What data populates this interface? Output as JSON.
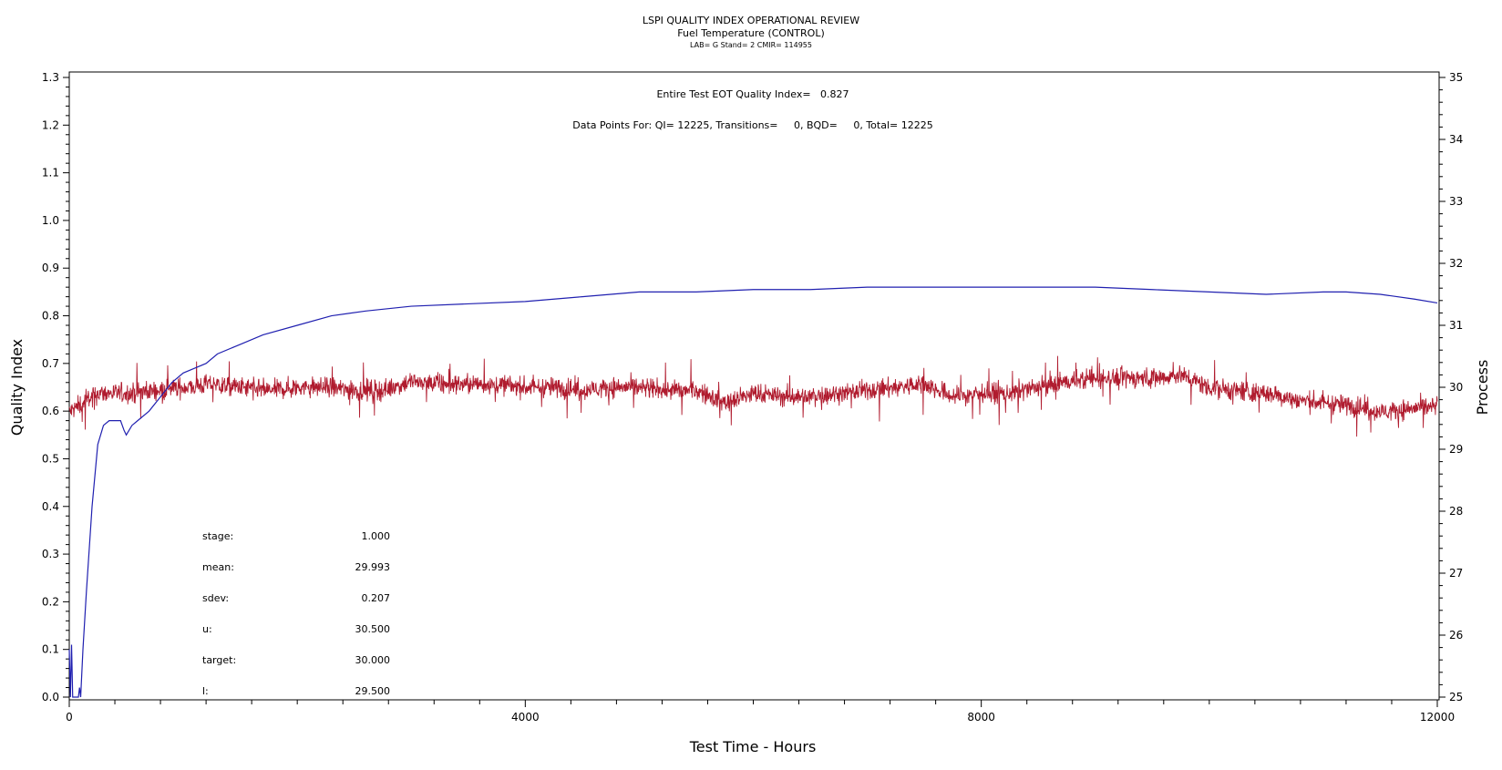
{
  "chart_data": {
    "type": "line",
    "title": "LSPI QUALITY INDEX OPERATIONAL REVIEW",
    "subtitle": "Fuel Temperature (CONTROL)",
    "subtitle2": "LAB= G Stand= 2 CMIR= 114955",
    "xlabel": "Test Time - Hours",
    "ylabel_left": "Quality Index",
    "ylabel_right": "Process",
    "xlim": [
      0,
      12000
    ],
    "ylim_left": [
      0.0,
      1.3
    ],
    "ylim_right": [
      25,
      35
    ],
    "x_ticks": [
      "0",
      "4000",
      "8000",
      "12000"
    ],
    "y_left_ticks": [
      "0.0",
      "0.1",
      "0.2",
      "0.3",
      "0.4",
      "0.5",
      "0.6",
      "0.7",
      "0.8",
      "0.9",
      "1.0",
      "1.1",
      "1.2",
      "1.3"
    ],
    "y_right_ticks": [
      "25",
      "26",
      "27",
      "28",
      "29",
      "30",
      "31",
      "32",
      "33",
      "34",
      "35"
    ],
    "header_lines": [
      "Entire Test EOT Quality Index=   0.827",
      "Data Points For: QI= 12225, Transitions=     0, BQD=     0, Total= 12225"
    ],
    "stats": [
      {
        "label": "stage:",
        "value": "1.000"
      },
      {
        "label": "mean:",
        "value": "29.993"
      },
      {
        "label": "sdev:",
        "value": "0.207"
      },
      {
        "label": "u:",
        "value": "30.500"
      },
      {
        "label": "target:",
        "value": "30.000"
      },
      {
        "label": "l:",
        "value": "29.500"
      }
    ],
    "colors": {
      "quality_index": "#2020b0",
      "process": "#b01b2e"
    },
    "series": [
      {
        "axis": "left",
        "x": [
          0,
          10,
          20,
          30,
          40,
          50,
          60,
          70,
          80,
          90,
          100,
          120,
          150,
          200,
          250,
          300,
          350,
          400,
          450,
          480,
          500,
          550,
          600,
          700,
          800,
          900,
          1000,
          1100,
          1200,
          1300,
          1500,
          1700,
          2000,
          2300,
          2600,
          3000,
          3500,
          4000,
          4500,
          5000,
          5500,
          6000,
          6500,
          7000,
          7500,
          8000,
          8500,
          9000,
          9500,
          10000,
          10500,
          11000,
          11200,
          11500,
          11800,
          12000
        ],
        "values": [
          0.1,
          0.0,
          0.11,
          0.0,
          0.0,
          0.0,
          0.0,
          0.0,
          0.0,
          0.02,
          0.0,
          0.1,
          0.22,
          0.4,
          0.53,
          0.57,
          0.58,
          0.58,
          0.58,
          0.56,
          0.55,
          0.57,
          0.58,
          0.6,
          0.63,
          0.66,
          0.68,
          0.69,
          0.7,
          0.72,
          0.74,
          0.76,
          0.78,
          0.8,
          0.81,
          0.82,
          0.825,
          0.83,
          0.84,
          0.85,
          0.85,
          0.855,
          0.855,
          0.86,
          0.86,
          0.86,
          0.86,
          0.86,
          0.855,
          0.85,
          0.845,
          0.85,
          0.85,
          0.845,
          0.835,
          0.827
        ]
      },
      {
        "axis": "right",
        "x": [
          0,
          250,
          500,
          750,
          1000,
          1250,
          1500,
          1750,
          2000,
          2250,
          2500,
          2750,
          3000,
          3250,
          3500,
          3750,
          4000,
          4250,
          4500,
          4750,
          5000,
          5250,
          5500,
          5750,
          6000,
          6250,
          6500,
          6750,
          7000,
          7250,
          7500,
          7750,
          8000,
          8250,
          8500,
          8750,
          9000,
          9250,
          9500,
          9750,
          10000,
          10250,
          10500,
          10750,
          11000,
          11250,
          11500,
          11750,
          12000
        ],
        "values": [
          29.6,
          29.9,
          29.9,
          29.95,
          30.0,
          30.05,
          30.0,
          29.95,
          30.0,
          30.0,
          29.95,
          29.95,
          30.1,
          30.05,
          30.05,
          30.05,
          30.0,
          30.0,
          29.95,
          30.0,
          30.0,
          29.95,
          29.95,
          29.75,
          29.9,
          29.85,
          29.85,
          29.9,
          29.95,
          30.0,
          30.05,
          29.85,
          29.9,
          29.9,
          30.0,
          30.1,
          30.15,
          30.15,
          30.15,
          30.2,
          30.0,
          29.95,
          29.9,
          29.8,
          29.75,
          29.7,
          29.6,
          29.65,
          29.7
        ]
      }
    ]
  }
}
